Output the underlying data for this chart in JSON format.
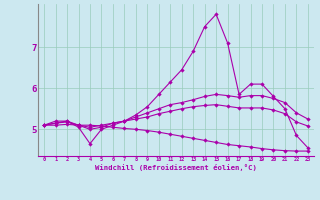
{
  "xlabel": "Windchill (Refroidissement éolien,°C)",
  "bg_color": "#cce8f0",
  "grid_color": "#99ccbb",
  "line_color": "#aa00aa",
  "x": [
    0,
    1,
    2,
    3,
    4,
    5,
    6,
    7,
    8,
    9,
    10,
    11,
    12,
    13,
    14,
    15,
    16,
    17,
    18,
    19,
    20,
    21,
    22,
    23
  ],
  "line1": [
    5.1,
    5.2,
    5.2,
    5.05,
    4.65,
    5.0,
    5.1,
    5.2,
    5.35,
    5.55,
    5.85,
    6.15,
    6.45,
    6.9,
    7.5,
    7.8,
    7.1,
    5.85,
    6.1,
    6.1,
    5.8,
    5.5,
    4.85,
    4.55
  ],
  "line2": [
    5.1,
    5.15,
    5.2,
    5.1,
    5.0,
    5.05,
    5.15,
    5.2,
    5.3,
    5.4,
    5.5,
    5.6,
    5.65,
    5.72,
    5.8,
    5.85,
    5.82,
    5.78,
    5.82,
    5.82,
    5.75,
    5.65,
    5.4,
    5.25
  ],
  "line3": [
    5.1,
    5.15,
    5.18,
    5.1,
    5.05,
    5.1,
    5.15,
    5.2,
    5.25,
    5.3,
    5.38,
    5.44,
    5.5,
    5.55,
    5.58,
    5.6,
    5.56,
    5.52,
    5.52,
    5.52,
    5.47,
    5.38,
    5.18,
    5.08
  ],
  "line4": [
    5.1,
    5.1,
    5.12,
    5.1,
    5.1,
    5.08,
    5.05,
    5.02,
    5.0,
    4.97,
    4.93,
    4.88,
    4.83,
    4.78,
    4.73,
    4.68,
    4.63,
    4.6,
    4.57,
    4.53,
    4.5,
    4.48,
    4.47,
    4.47
  ],
  "ylim": [
    4.35,
    8.05
  ],
  "yticks": [
    5,
    6,
    7
  ],
  "xticks": [
    0,
    1,
    2,
    3,
    4,
    5,
    6,
    7,
    8,
    9,
    10,
    11,
    12,
    13,
    14,
    15,
    16,
    17,
    18,
    19,
    20,
    21,
    22,
    23
  ]
}
